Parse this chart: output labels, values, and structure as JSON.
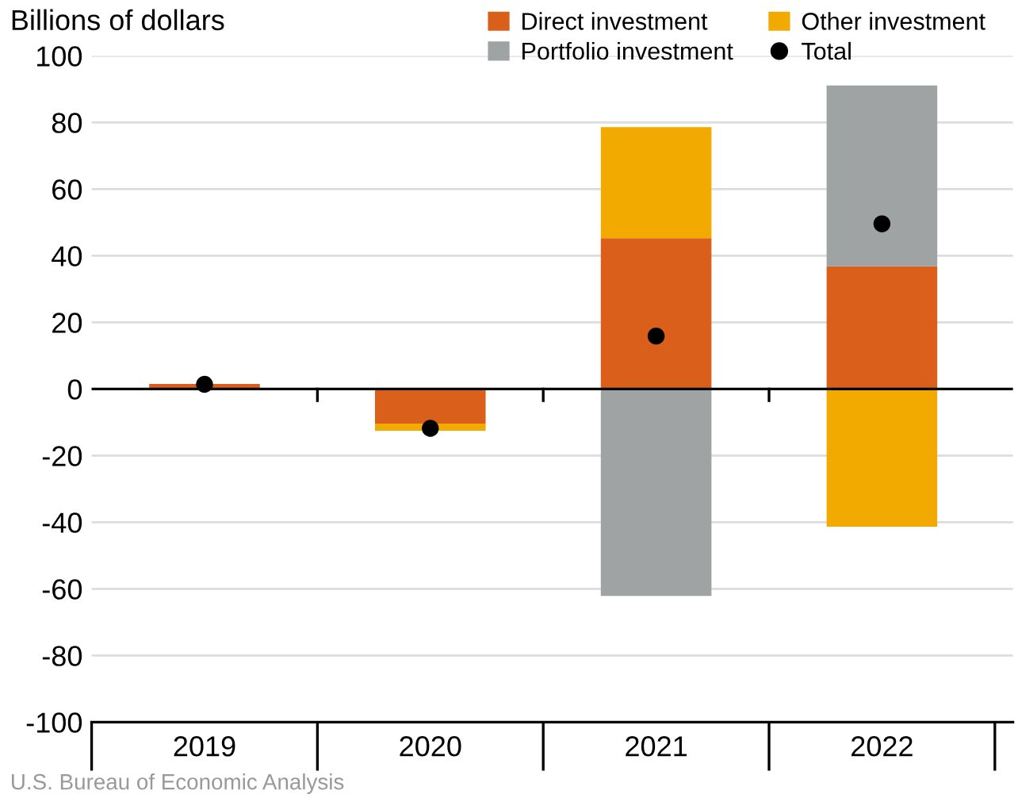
{
  "chart_data": {
    "type": "bar",
    "stacked": true,
    "ylabel": "Billions of dollars",
    "categories": [
      "2019",
      "2020",
      "2021",
      "2022"
    ],
    "series": [
      {
        "name": "Direct investment",
        "color": "#d95f1a",
        "values": [
          1.5,
          -10.4,
          45.3,
          36.8
        ]
      },
      {
        "name": "Portfolio investment",
        "color": "#9fa3a3",
        "values": [
          0,
          0,
          -62.1,
          54.3
        ]
      },
      {
        "name": "Other investment",
        "color": "#f2a900",
        "values": [
          0,
          -2.1,
          33.3,
          -41.3
        ]
      },
      {
        "name": "Total",
        "type": "scatter",
        "color": "#000000",
        "values": [
          1.4,
          -11.8,
          15.9,
          49.6
        ]
      }
    ],
    "ylim": [
      -100,
      100
    ],
    "yticks": [
      -100,
      -80,
      -60,
      -40,
      -20,
      0,
      20,
      40,
      60,
      80,
      100
    ],
    "grid": "y",
    "legend": "top right",
    "marker": "circle",
    "annotations": [
      "U.S. Bureau of Economic Analysis"
    ]
  }
}
